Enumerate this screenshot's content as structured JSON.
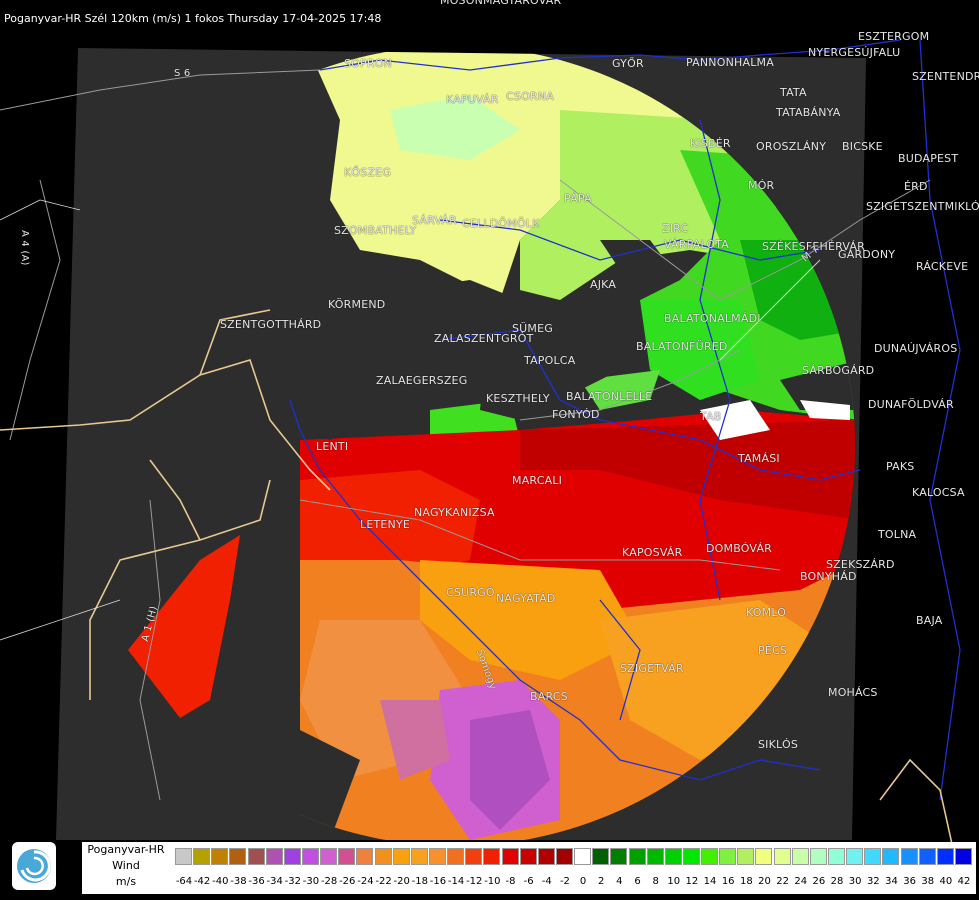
{
  "title": "Poganyvar-HR Szél 120km (m/s) 1 fokos Thursday 17-04-2025 17:48",
  "road_labels": [
    {
      "id": "s6",
      "text": "S 6"
    },
    {
      "id": "a4",
      "text": "A 4 (A)"
    },
    {
      "id": "a1",
      "text": "A 1 (H)"
    },
    {
      "id": "m7",
      "text": "M 7"
    },
    {
      "id": "somogy",
      "text": "Somogy"
    }
  ],
  "cities": [
    {
      "id": "mosonmagyarovar",
      "text": "MOSONMAGYARÓVÁR"
    },
    {
      "id": "esztergom",
      "text": "ESZTERGOM"
    },
    {
      "id": "nyergesujfalu",
      "text": "NYERGESÚJFALU"
    },
    {
      "id": "sopron",
      "text": "SOPRON"
    },
    {
      "id": "gyor",
      "text": "GYŐR"
    },
    {
      "id": "szentendre",
      "text": "SZENTENDRE"
    },
    {
      "id": "kapuvar",
      "text": "KAPUVÁR"
    },
    {
      "id": "csorna",
      "text": "CSORNA"
    },
    {
      "id": "tata",
      "text": "TATA"
    },
    {
      "id": "tatabanya",
      "text": "TATABÁNYA"
    },
    {
      "id": "pannonhalma",
      "text": "PANNONHALMA"
    },
    {
      "id": "kisber",
      "text": "KISBÉR"
    },
    {
      "id": "oroszlany",
      "text": "OROSZLÁNY"
    },
    {
      "id": "biatorbagy",
      "text": "BICSKE"
    },
    {
      "id": "budapest",
      "text": "BUDAPEST"
    },
    {
      "id": "mor",
      "text": "MÓR"
    },
    {
      "id": "erd",
      "text": "ÉRD"
    },
    {
      "id": "koszeg",
      "text": "KŐSZEG"
    },
    {
      "id": "papa",
      "text": "PÁPA"
    },
    {
      "id": "szigetszentmiklos",
      "text": "SZIGETSZENTMIKLÓS"
    },
    {
      "id": "sarvar",
      "text": "SÁRVÁR"
    },
    {
      "id": "celldomolk",
      "text": "CELLDÖMÖLK"
    },
    {
      "id": "szombathely",
      "text": "SZOMBATHELY"
    },
    {
      "id": "zirc",
      "text": "ZIRC"
    },
    {
      "id": "varpalota",
      "text": "VÁRPALOTA"
    },
    {
      "id": "szekesfehervar",
      "text": "SZÉKESFEHÉRVÁR"
    },
    {
      "id": "gardony",
      "text": "GÁRDONY"
    },
    {
      "id": "rackeve",
      "text": "RÁCKEVE"
    },
    {
      "id": "ajka",
      "text": "AJKA"
    },
    {
      "id": "kormend",
      "text": "KÖRMEND"
    },
    {
      "id": "szentgotthard",
      "text": "SZENTGOTTHÁRD"
    },
    {
      "id": "balatonalmadi",
      "text": "BALATONALMÁDI"
    },
    {
      "id": "sumeg",
      "text": "SÜMEG"
    },
    {
      "id": "zalaszentgrot",
      "text": "ZALASZENTGRÓT"
    },
    {
      "id": "balatonfured",
      "text": "BALATONFÜRED"
    },
    {
      "id": "dunaujvaros",
      "text": "DUNAÚJVÁROS"
    },
    {
      "id": "tapolca",
      "text": "TAPOLCA"
    },
    {
      "id": "sarbogard",
      "text": "SÁRBOGÁRD"
    },
    {
      "id": "zalaegerszeg",
      "text": "ZALAEGERSZEG"
    },
    {
      "id": "keszthely",
      "text": "KESZTHELY"
    },
    {
      "id": "balatonboglar",
      "text": "BALATONLELLE"
    },
    {
      "id": "fonyod",
      "text": "FONYÓD"
    },
    {
      "id": "tab",
      "text": "TAB"
    },
    {
      "id": "dunafoldvar",
      "text": "DUNAFÖLDVÁR"
    },
    {
      "id": "lenti",
      "text": "LENTI"
    },
    {
      "id": "tamasi",
      "text": "TAMÁSI"
    },
    {
      "id": "paks",
      "text": "PAKS"
    },
    {
      "id": "marcali",
      "text": "MARCALI"
    },
    {
      "id": "kalocsa",
      "text": "KALOCSA"
    },
    {
      "id": "nagykanizsa",
      "text": "NAGYKANIZSA"
    },
    {
      "id": "letenye",
      "text": "LETENYE"
    },
    {
      "id": "tolna",
      "text": "TOLNA"
    },
    {
      "id": "kaposvar",
      "text": "KAPOSVÁR"
    },
    {
      "id": "dombovar",
      "text": "DOMBÓVÁR"
    },
    {
      "id": "szekszard",
      "text": "SZEKSZÁRD"
    },
    {
      "id": "csurgo",
      "text": "CSURGÓ"
    },
    {
      "id": "nagyatad",
      "text": "NAGYATÁD"
    },
    {
      "id": "bonyhad",
      "text": "BONYHÁD"
    },
    {
      "id": "komlo",
      "text": "KOMLÓ"
    },
    {
      "id": "baja",
      "text": "BAJA"
    },
    {
      "id": "pecs",
      "text": "PÉCS"
    },
    {
      "id": "szigetvar",
      "text": "SZIGETVÁR"
    },
    {
      "id": "mohacs",
      "text": "MOHÁCS"
    },
    {
      "id": "barcs",
      "text": "BARCS"
    },
    {
      "id": "siklos",
      "text": "SIKLÓS"
    }
  ],
  "legend": {
    "name_lines": [
      "Poganyvar-HR",
      "Wind",
      "m/s"
    ],
    "ticks": [
      "-64",
      "-42",
      "-40",
      "-38",
      "-36",
      "-34",
      "-32",
      "-30",
      "-28",
      "-26",
      "-24",
      "-22",
      "-20",
      "-18",
      "-16",
      "-14",
      "-12",
      "-10",
      "-8",
      "-6",
      "-4",
      "-2",
      "0",
      "2",
      "4",
      "6",
      "8",
      "10",
      "12",
      "14",
      "16",
      "18",
      "20",
      "22",
      "24",
      "26",
      "28",
      "30",
      "32",
      "34",
      "36",
      "38",
      "40",
      "42"
    ],
    "colors": [
      "#c8c8c8",
      "#b4a000",
      "#c08000",
      "#b06010",
      "#a05050",
      "#b050b0",
      "#a040e0",
      "#c050e0",
      "#d060d0",
      "#d05090",
      "#f08040",
      "#f09020",
      "#f8a010",
      "#f8a020",
      "#f89030",
      "#f07020",
      "#f04010",
      "#f02000",
      "#e00000",
      "#c80000",
      "#b00000",
      "#a00000",
      "#ffffff",
      "#006000",
      "#008000",
      "#00a000",
      "#00b800",
      "#00d000",
      "#00e800",
      "#40f000",
      "#80f040",
      "#b0f060",
      "#f0ff80",
      "#e0ff90",
      "#c8ffa8",
      "#b0ffc0",
      "#90ffd8",
      "#70f0f0",
      "#40d8ff",
      "#20b8ff",
      "#1890ff",
      "#1060ff",
      "#0030ff",
      "#0000e0"
    ]
  }
}
